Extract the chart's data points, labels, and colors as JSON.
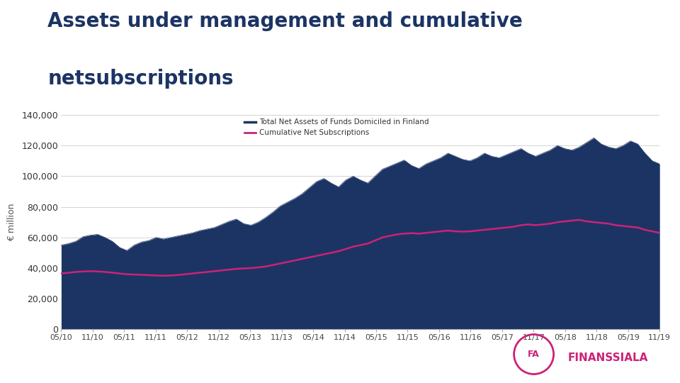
{
  "title_line1": "Assets under management and cumulative",
  "title_line2": "netsubscriptions",
  "ylabel": "€ million",
  "legend_label1": "Total Net Assets of Funds Domiciled in Finland",
  "legend_label2": "Cumulative Net Subscriptions",
  "fill_color": "#1c3464",
  "line_color": "#cc2277",
  "background_color": "#ffffff",
  "ylim": [
    0,
    140000
  ],
  "yticks": [
    0,
    20000,
    40000,
    60000,
    80000,
    100000,
    120000,
    140000
  ],
  "xtick_labels": [
    "05/10",
    "11/10",
    "05/11",
    "11/11",
    "05/12",
    "11/12",
    "05/13",
    "11/13",
    "05/14",
    "11/14",
    "05/15",
    "11/15",
    "05/16",
    "11/16",
    "05/17",
    "11/17",
    "05/18",
    "11/18",
    "05/19",
    "11/19"
  ],
  "title_color": "#1c3464",
  "title_fontsize": 20,
  "axis_fontsize": 9,
  "grid_color": "#cccccc",
  "total_assets": [
    55000,
    56000,
    57500,
    60500,
    61500,
    62000,
    60000,
    57500,
    53500,
    51500,
    55000,
    57000,
    58000,
    60000,
    59000,
    60000,
    61000,
    62000,
    63000,
    64500,
    65500,
    66500,
    68500,
    70500,
    72000,
    69000,
    68000,
    70000,
    73000,
    76500,
    80500,
    83000,
    85500,
    88500,
    92500,
    96500,
    98500,
    95500,
    93000,
    97500,
    100000,
    97500,
    95500,
    100000,
    104500,
    106500,
    108500,
    110500,
    107000,
    105000,
    108000,
    110000,
    112000,
    115000,
    113000,
    111000,
    110000,
    112000,
    115000,
    113000,
    112000,
    114000,
    116000,
    118000,
    115000,
    113000,
    115000,
    117000,
    120000,
    118000,
    117000,
    119000,
    122000,
    125000,
    121000,
    119000,
    118000,
    120000,
    123000,
    121000,
    115000,
    110000,
    108000
  ],
  "cum_net_subs": [
    36500,
    37000,
    37500,
    37800,
    38000,
    37800,
    37500,
    37000,
    36500,
    36000,
    35800,
    35600,
    35400,
    35200,
    35000,
    35200,
    35500,
    36000,
    36500,
    37000,
    37500,
    38000,
    38500,
    39000,
    39500,
    39800,
    40000,
    40500,
    41000,
    42000,
    43000,
    44000,
    45000,
    46000,
    47000,
    48000,
    49000,
    50000,
    51000,
    52500,
    54000,
    55000,
    56000,
    58000,
    60000,
    61000,
    62000,
    62500,
    62800,
    62500,
    63000,
    63500,
    64000,
    64500,
    64000,
    63800,
    64000,
    64500,
    65000,
    65500,
    66000,
    66500,
    67000,
    68000,
    68500,
    68000,
    68500,
    69000,
    70000,
    70500,
    71000,
    71500,
    70500,
    70000,
    69500,
    69000,
    68000,
    67500,
    67000,
    66500,
    65000,
    64000,
    63000
  ]
}
